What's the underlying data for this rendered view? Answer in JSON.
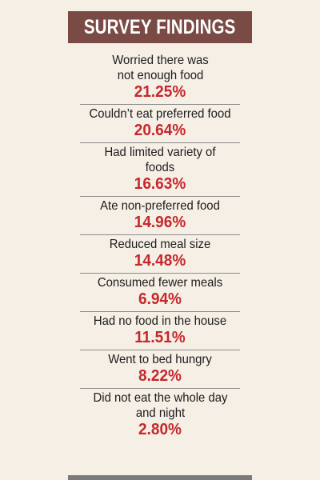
{
  "header": {
    "title": "SURVEY FINDINGS"
  },
  "findings": [
    {
      "label": "Worried there was not enough food",
      "value": "21.25%"
    },
    {
      "label": "Couldn’t eat preferred food",
      "value": "20.64%"
    },
    {
      "label": "Had limited variety of foods",
      "value": "16.63%"
    },
    {
      "label": "Ate non-preferred food",
      "value": "14.96%"
    },
    {
      "label": "Reduced meal size",
      "value": "14.48%"
    },
    {
      "label": "Consumed fewer meals",
      "value": "6.94%"
    },
    {
      "label": "Had no food in the house",
      "value": "11.51%"
    },
    {
      "label": "Went to bed hungry",
      "value": "8.22%"
    },
    {
      "label": "Did not eat the whole day and night",
      "value": "2.80%"
    }
  ],
  "colors": {
    "background": "#f5efe6",
    "header_background": "#7a4a45",
    "value_text": "#c5282c"
  }
}
